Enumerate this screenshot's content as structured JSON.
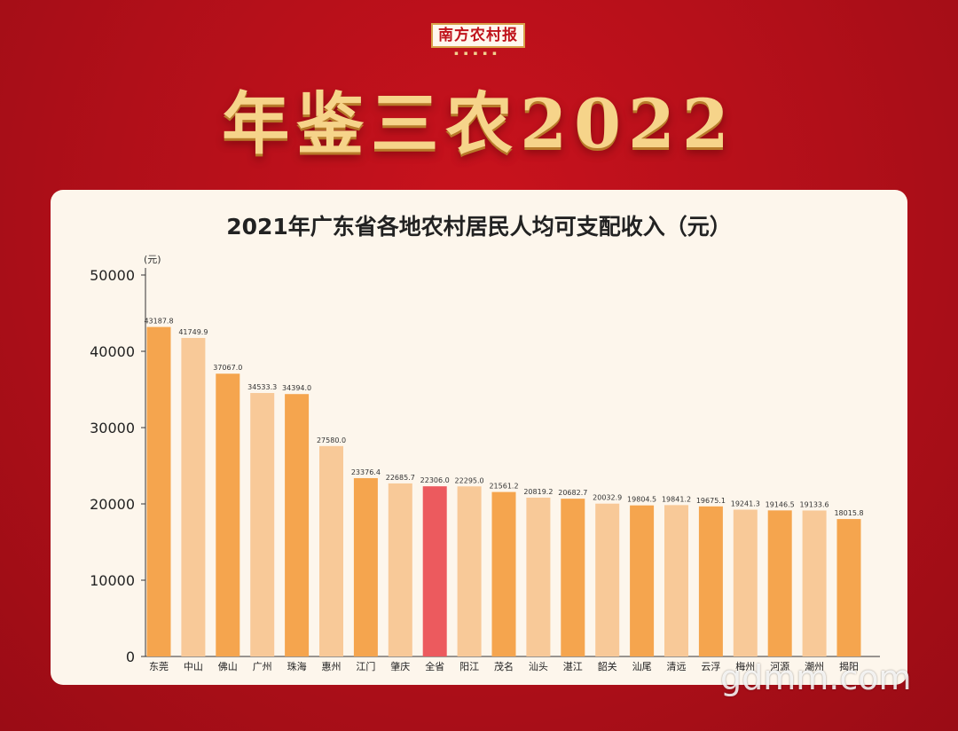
{
  "header": {
    "logo_text": "南方农村报",
    "headline": "年鉴三农2022"
  },
  "chart_data": {
    "type": "bar",
    "title": "2021年广东省各地农村居民人均可支配收入（元）",
    "unit_label": "(元)",
    "xlabel": "",
    "ylabel": "",
    "ylim": [
      0,
      50000
    ],
    "yticks": [
      "0",
      "10000",
      "20000",
      "30000",
      "40000",
      "50000"
    ],
    "categories": [
      "东莞",
      "中山",
      "佛山",
      "广州",
      "珠海",
      "惠州",
      "江门",
      "肇庆",
      "全省",
      "阳江",
      "茂名",
      "汕头",
      "湛江",
      "韶关",
      "汕尾",
      "清远",
      "云浮",
      "梅州",
      "河源",
      "潮州",
      "揭阳"
    ],
    "values": [
      43187.8,
      41749.9,
      37067.0,
      34533.3,
      34394.0,
      27580.0,
      23376.4,
      22685.7,
      22306.0,
      22295.0,
      21561.2,
      20819.2,
      20682.7,
      20032.9,
      19804.5,
      19841.2,
      19675.1,
      19241.3,
      19146.5,
      19133.6,
      18015.8
    ],
    "value_labels": [
      "43187.8",
      "41749.9",
      "37067.0",
      "34533.3",
      "34394.0",
      "27580.0",
      "23376.4",
      "22685.7",
      "22306.0",
      "22295.0",
      "21561.2",
      "20819.2",
      "20682.7",
      "20032.9",
      "19804.5",
      "19841.2",
      "19675.1",
      "19241.3",
      "19146.5",
      "19133.6",
      "18015.8"
    ],
    "highlight_category": "全省",
    "colors": {
      "dark": "#f5a54e",
      "light": "#f8c998",
      "highlight": "#ec5a5e",
      "axis": "#333333"
    },
    "grid": false
  },
  "watermark": "gdmm.com"
}
